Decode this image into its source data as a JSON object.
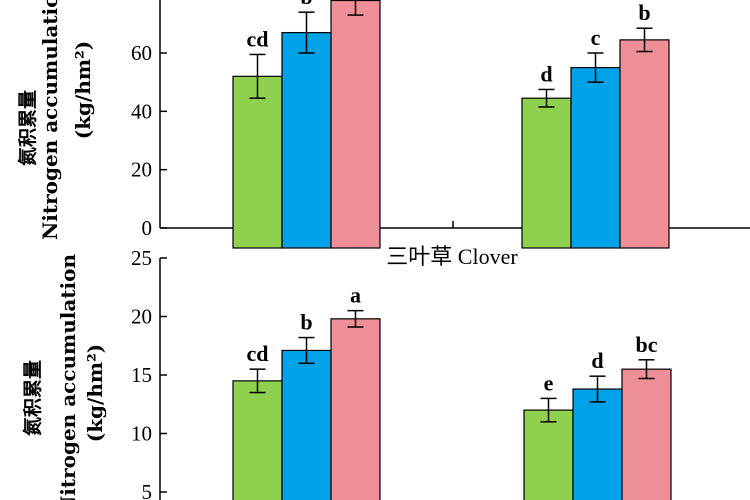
{
  "chart_data": [
    {
      "type": "bar",
      "title": "",
      "ylabel_cn": "氮积累量",
      "ylabel_en": "Nitrogen accumulation",
      "ylabel_unit": "(kg/hm²)",
      "ylim": [
        0,
        80
      ],
      "yticks": [
        0,
        20,
        40,
        60
      ],
      "series_colors": [
        "#8fd14f",
        "#00a2e8",
        "#ee8e97"
      ],
      "groups": [
        {
          "values": [
            52,
            67,
            78
          ],
          "errors": [
            7.5,
            7,
            5
          ],
          "letters": [
            "cd",
            "b",
            ""
          ]
        },
        {
          "values": [
            44.5,
            55,
            64.5
          ],
          "errors": [
            3,
            5,
            4
          ],
          "letters": [
            "d",
            "c",
            "b"
          ]
        }
      ]
    },
    {
      "type": "bar",
      "title": "三叶草 Clover",
      "ylabel_cn": "氮积累量",
      "ylabel_en": "Nitrogen accumulation",
      "ylabel_unit": "(kg/hm²)",
      "ylim": [
        5,
        25
      ],
      "yticks": [
        5,
        10,
        15,
        20,
        25
      ],
      "series_colors": [
        "#8fd14f",
        "#00a2e8",
        "#ee8e97"
      ],
      "groups": [
        {
          "values": [
            14.5,
            17.1,
            19.8
          ],
          "errors": [
            1.0,
            1.1,
            0.7
          ],
          "letters": [
            "cd",
            "b",
            "a"
          ]
        },
        {
          "values": [
            12.0,
            13.8,
            15.5
          ],
          "errors": [
            1.0,
            1.1,
            0.8
          ],
          "letters": [
            "e",
            "d",
            "bc"
          ]
        }
      ]
    }
  ]
}
